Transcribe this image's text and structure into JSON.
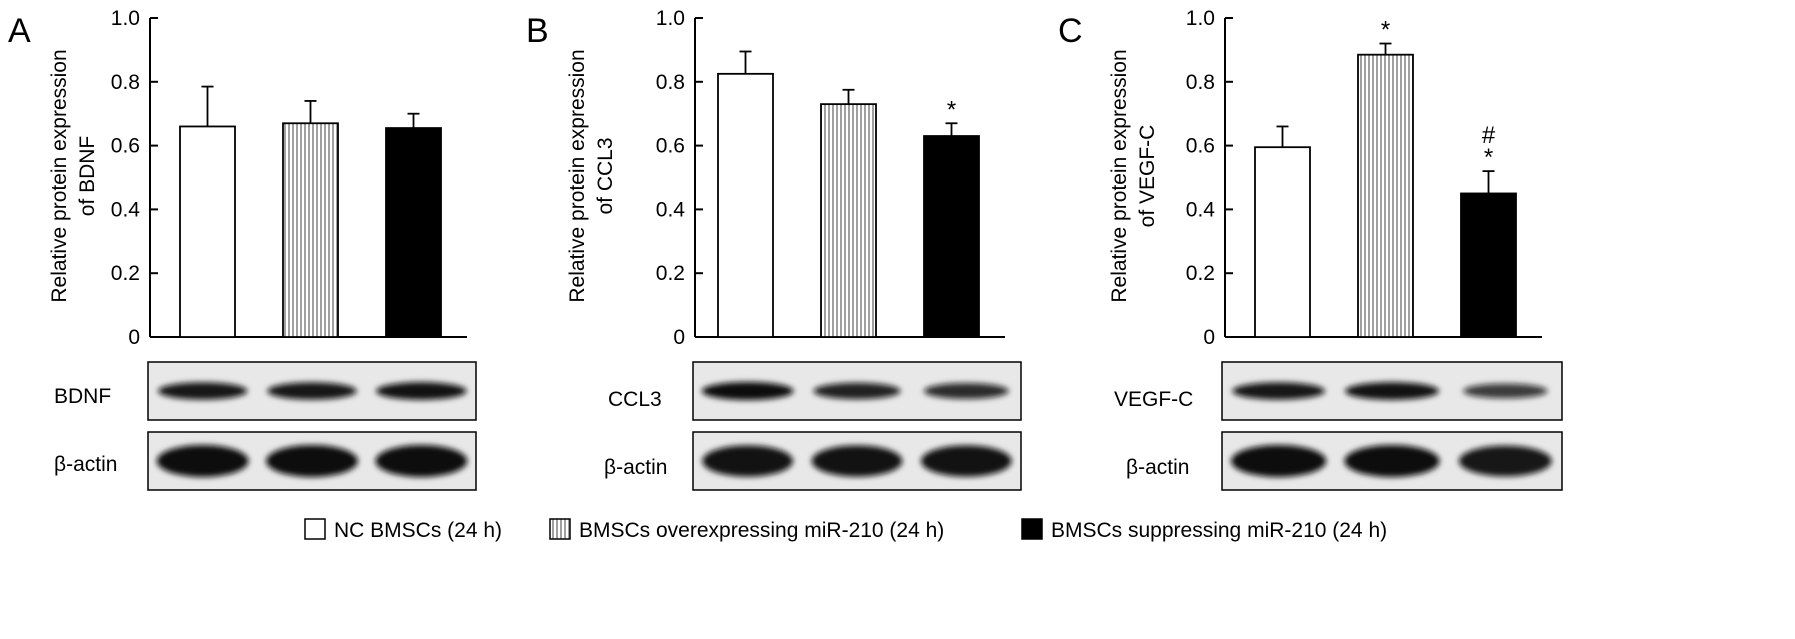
{
  "colors": {
    "nc": "#ffffff",
    "overexpressing": "#d9d9d9",
    "suppressing": "#000000",
    "axis": "#000000",
    "blot_background": "#e8e8e8",
    "band": "#111111"
  },
  "legend": [
    {
      "label": "NC BMSCs (24 h)",
      "swatch": "white"
    },
    {
      "label": "BMSCs overexpressing miR-210 (24 h)",
      "swatch": "striped"
    },
    {
      "label": "BMSCs suppressing miR-210 (24 h)",
      "swatch": "black"
    }
  ],
  "chart_data": [
    {
      "panel": "A",
      "type": "bar",
      "ylabel_line1": "Relative protein expression",
      "ylabel_line2": "of BDNF",
      "ylim": [
        0,
        1.0
      ],
      "yticks": [
        "0",
        "0.2",
        "0.4",
        "0.6",
        "0.8",
        "1.0"
      ],
      "ytick_values": [
        0,
        0.2,
        0.4,
        0.6,
        0.8,
        1.0
      ],
      "categories": [
        "NC BMSCs (24 h)",
        "BMSCs overexpressing miR-210 (24 h)",
        "BMSCs suppressing miR-210 (24 h)"
      ],
      "values": [
        0.66,
        0.67,
        0.655
      ],
      "errors": [
        0.125,
        0.07,
        0.045
      ],
      "annotations": [
        "",
        "",
        ""
      ],
      "blots": [
        {
          "label": "BDNF",
          "bands": [
            0.9,
            0.9,
            0.95
          ]
        },
        {
          "label": "β-actin",
          "bands": [
            1.0,
            1.0,
            1.0
          ]
        }
      ]
    },
    {
      "panel": "B",
      "type": "bar",
      "ylabel_line1": "Relative protein expression",
      "ylabel_line2": "of CCL3",
      "ylim": [
        0,
        1.0
      ],
      "yticks": [
        "0",
        "0.2",
        "0.4",
        "0.6",
        "0.8",
        "1.0"
      ],
      "ytick_values": [
        0,
        0.2,
        0.4,
        0.6,
        0.8,
        1.0
      ],
      "categories": [
        "NC BMSCs (24 h)",
        "BMSCs overexpressing miR-210 (24 h)",
        "BMSCs suppressing miR-210 (24 h)"
      ],
      "values": [
        0.825,
        0.73,
        0.63
      ],
      "errors": [
        0.07,
        0.045,
        0.04
      ],
      "annotations": [
        "",
        "",
        "*"
      ],
      "blots": [
        {
          "label": "CCL3",
          "bands": [
            1.0,
            0.8,
            0.7
          ]
        },
        {
          "label": "β-actin",
          "bands": [
            0.95,
            0.95,
            0.95
          ]
        }
      ]
    },
    {
      "panel": "C",
      "type": "bar",
      "ylabel_line1": "Relative protein expression",
      "ylabel_line2": "of VEGF-C",
      "ylim": [
        0,
        1.0
      ],
      "yticks": [
        "0",
        "0.2",
        "0.4",
        "0.6",
        "0.8",
        "1.0"
      ],
      "ytick_values": [
        0,
        0.2,
        0.4,
        0.6,
        0.8,
        1.0
      ],
      "categories": [
        "NC BMSCs (24 h)",
        "BMSCs overexpressing miR-210 (24 h)",
        "BMSCs suppressing miR-210 (24 h)"
      ],
      "values": [
        0.595,
        0.885,
        0.45
      ],
      "errors": [
        0.065,
        0.035,
        0.07
      ],
      "annotations": [
        "",
        "*",
        "#\n*"
      ],
      "blots": [
        {
          "label": "VEGF-C",
          "bands": [
            0.9,
            0.95,
            0.55
          ]
        },
        {
          "label": "β-actin",
          "bands": [
            1.0,
            1.0,
            0.9
          ]
        }
      ]
    }
  ]
}
